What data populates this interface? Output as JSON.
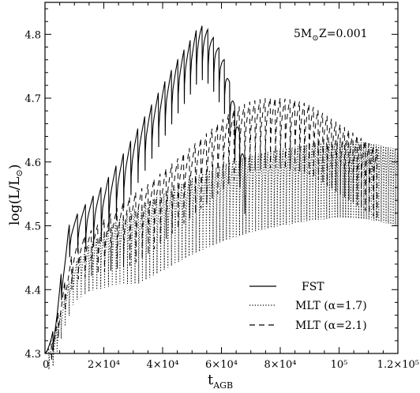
{
  "chart_data": {
    "type": "line",
    "annotation": {
      "mass_label": "5M",
      "mass_sub": "⊙",
      "metallicity": "Z=0.001"
    },
    "xlabel": {
      "main": "t",
      "sub": "AGB"
    },
    "ylabel": {
      "main": "log(L/L",
      "sub": "⊙",
      "close": ")"
    },
    "xlim": [
      0,
      120000
    ],
    "ylim": [
      4.3,
      4.85
    ],
    "x_ticks": [
      {
        "value": 0,
        "label": "0"
      },
      {
        "value": 20000,
        "label": "2×10⁴"
      },
      {
        "value": 40000,
        "label": "4×10⁴"
      },
      {
        "value": 60000,
        "label": "6×10⁴"
      },
      {
        "value": 80000,
        "label": "8×10⁴"
      },
      {
        "value": 100000,
        "label": "10⁵"
      },
      {
        "value": 120000,
        "label": "1.2×10⁵"
      }
    ],
    "y_ticks": [
      {
        "value": 4.3,
        "label": "4.3"
      },
      {
        "value": 4.4,
        "label": "4.4"
      },
      {
        "value": 4.5,
        "label": "4.5"
      },
      {
        "value": 4.6,
        "label": "4.6"
      },
      {
        "value": 4.7,
        "label": "4.7"
      },
      {
        "value": 4.8,
        "label": "4.8"
      }
    ],
    "legend_position": "bottom-right",
    "series": [
      {
        "name": "FST",
        "style": "solid",
        "envelope_x": [
          0,
          2500,
          5000,
          8000,
          12000,
          16000,
          20000,
          25000,
          30000,
          35000,
          40000,
          45000,
          50000,
          52500,
          55000,
          58000,
          61000,
          64000,
          66000,
          68000
        ],
        "envelope_y": [
          4.3,
          4.33,
          4.41,
          4.5,
          4.525,
          4.545,
          4.565,
          4.6,
          4.64,
          4.68,
          4.72,
          4.76,
          4.795,
          4.815,
          4.81,
          4.79,
          4.76,
          4.7,
          4.65,
          4.6
        ],
        "dip": 0.085,
        "pulses": 30,
        "x_end": 68000
      },
      {
        "name": "MLT (α=1.7)",
        "style": "dotted",
        "envelope_x": [
          0,
          3000,
          6000,
          10000,
          15000,
          20000,
          25000,
          30000,
          40000,
          50000,
          60000,
          70000,
          80000,
          90000,
          100000,
          110000,
          115000,
          120000
        ],
        "envelope_y": [
          4.3,
          4.32,
          4.38,
          4.44,
          4.47,
          4.49,
          4.51,
          4.525,
          4.55,
          4.575,
          4.595,
          4.61,
          4.62,
          4.628,
          4.633,
          4.63,
          4.625,
          4.62
        ],
        "dip": 0.12,
        "pulses": 110,
        "x_end": 120000
      },
      {
        "name": "MLT (α=2.1)",
        "style": "dashed",
        "envelope_x": [
          0,
          3000,
          6000,
          10000,
          15000,
          20000,
          25000,
          30000,
          35000,
          40000,
          45000,
          50000,
          55000,
          60000,
          65000,
          70000,
          75000,
          80000,
          85000,
          90000,
          95000,
          100000,
          105000,
          110000,
          113000
        ],
        "envelope_y": [
          4.3,
          4.33,
          4.4,
          4.47,
          4.49,
          4.51,
          4.53,
          4.55,
          4.565,
          4.585,
          4.605,
          4.625,
          4.645,
          4.665,
          4.685,
          4.695,
          4.7,
          4.7,
          4.697,
          4.69,
          4.675,
          4.66,
          4.645,
          4.63,
          4.62
        ],
        "dip": 0.11,
        "pulses": 62,
        "x_end": 113000
      }
    ]
  }
}
